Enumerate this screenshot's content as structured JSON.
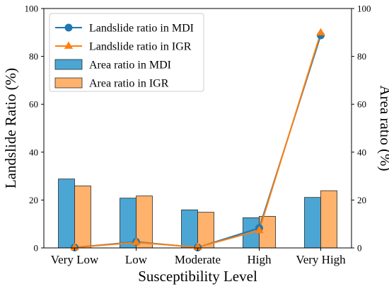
{
  "chart_data": {
    "type": "bar",
    "categories": [
      "Very Low",
      "Low",
      "Moderate",
      "High",
      "Very High"
    ],
    "xlabel": "Susceptibility Level",
    "ylabel": "Landslide Ratio (%)",
    "ylabel_right": "Area ratio (%)",
    "ylim": [
      0,
      100
    ],
    "ylim_right": [
      0,
      100
    ],
    "yticks": [
      0,
      20,
      40,
      60,
      80,
      100
    ],
    "legend_position": "top-left",
    "grid": false,
    "series": [
      {
        "name": "Landslide ratio in MDI",
        "type": "line",
        "marker": "circle",
        "axis": "left",
        "color": "#1f77b4",
        "values": [
          0.2,
          2.5,
          0.2,
          8.3,
          88.8
        ]
      },
      {
        "name": "Landslide ratio in IGR",
        "type": "line",
        "marker": "triangle",
        "axis": "left",
        "color": "#ff7f0e",
        "values": [
          0.2,
          2.3,
          0.3,
          7.3,
          89.9
        ]
      },
      {
        "name": "Area ratio in MDI",
        "type": "bar",
        "axis": "right",
        "color": "#4ba6d4",
        "values": [
          28.8,
          20.8,
          15.9,
          12.6,
          21.1
        ]
      },
      {
        "name": "Area ratio in IGR",
        "type": "bar",
        "axis": "right",
        "color": "#ffb26b",
        "values": [
          25.9,
          21.7,
          14.9,
          13.2,
          23.9
        ]
      }
    ]
  }
}
